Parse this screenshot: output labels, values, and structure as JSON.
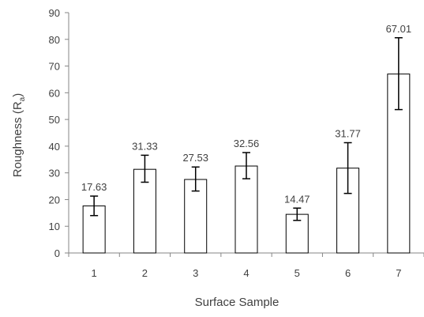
{
  "chart_data": {
    "type": "bar",
    "title": "",
    "xlabel": "Surface Sample",
    "ylabel": {
      "prefix": "Roughness (R",
      "subscript": "a",
      "suffix": ")"
    },
    "categories": [
      "1",
      "2",
      "3",
      "4",
      "5",
      "6",
      "7"
    ],
    "series": [
      {
        "values": [
          17.63,
          31.33,
          27.53,
          32.56,
          14.47,
          31.77,
          67.01
        ],
        "error_low": [
          14.0,
          26.5,
          23.2,
          27.8,
          12.2,
          22.3,
          53.7
        ],
        "error_high": [
          21.3,
          36.6,
          32.2,
          37.6,
          16.8,
          41.3,
          80.6
        ],
        "data_labels": [
          "17.63",
          "31.33",
          "27.53",
          "32.56",
          "14.47",
          "31.77",
          "67.01"
        ],
        "fill": "#ffffff",
        "stroke": "#000000"
      }
    ],
    "ylim": [
      0,
      90
    ],
    "yticks": [
      "0",
      "10",
      "20",
      "30",
      "40",
      "50",
      "60",
      "70",
      "80",
      "90"
    ],
    "grid": false,
    "legend": "none",
    "axis_color": "#868686",
    "text_color": "#404040"
  }
}
